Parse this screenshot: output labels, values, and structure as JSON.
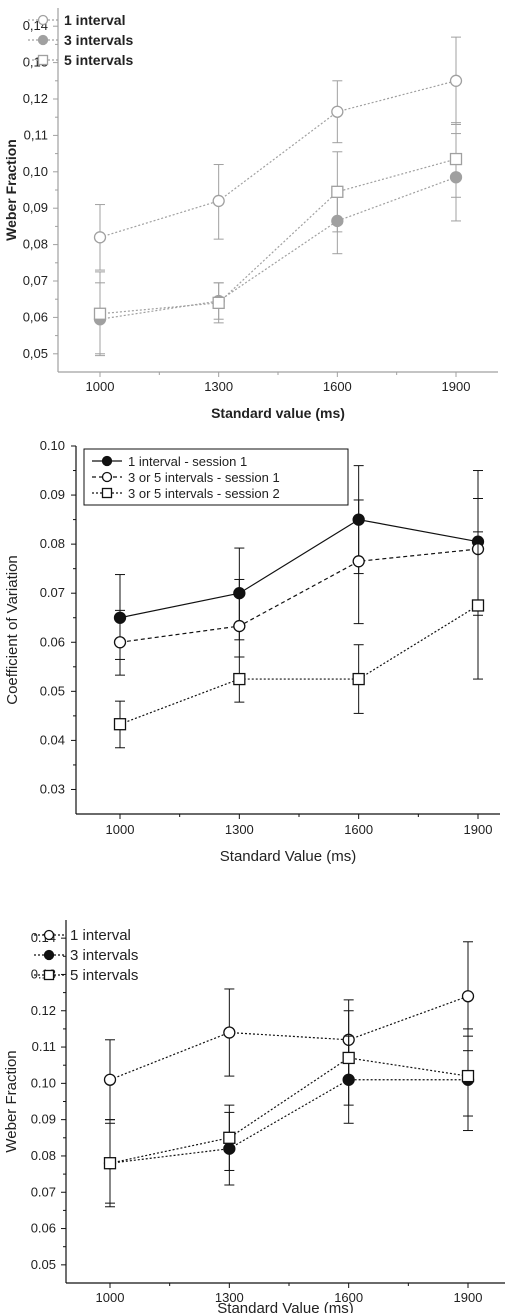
{
  "chart_data": [
    {
      "type": "line",
      "title": "",
      "xlabel": "Standard value (ms)",
      "ylabel": "Weber Fraction",
      "x": [
        1000,
        1300,
        1600,
        1900
      ],
      "xticks": [
        "1000",
        "1300",
        "1600",
        "1900"
      ],
      "ylim": [
        0.045,
        0.145
      ],
      "yticks": [
        "0,05",
        "0,06",
        "0,07",
        "0,08",
        "0,09",
        "0,10",
        "0,11",
        "0,12",
        "0,13",
        "0,14"
      ],
      "grid": false,
      "legend": "top-left",
      "style_color": "#a0a0a0",
      "series": [
        {
          "name": "1 interval",
          "marker": "open-circle",
          "line": "dotted",
          "values": [
            0.082,
            0.092,
            0.1165,
            0.125
          ],
          "err_lo": [
            0.073,
            0.0815,
            0.108,
            0.113
          ],
          "err_hi": [
            0.091,
            0.102,
            0.125,
            0.137
          ]
        },
        {
          "name": "3 intervals",
          "marker": "filled-circle",
          "line": "dotted",
          "values": [
            0.0595,
            0.0645,
            0.0865,
            0.0985
          ],
          "err_lo": [
            0.05,
            0.0595,
            0.0775,
            0.0865
          ],
          "err_hi": [
            0.0695,
            0.0695,
            0.0955,
            0.1105
          ]
        },
        {
          "name": "5 intervals",
          "marker": "open-square",
          "line": "dotted",
          "values": [
            0.061,
            0.064,
            0.0945,
            0.1035
          ],
          "err_lo": [
            0.0495,
            0.0585,
            0.0835,
            0.093
          ],
          "err_hi": [
            0.0725,
            0.0695,
            0.1055,
            0.1135
          ]
        }
      ]
    },
    {
      "type": "line",
      "title": "",
      "xlabel": "Standard Value (ms)",
      "ylabel": "Coefficient of Variation",
      "x": [
        1000,
        1300,
        1600,
        1900
      ],
      "xticks": [
        "1000",
        "1300",
        "1600",
        "1900"
      ],
      "ylim": [
        0.025,
        0.1
      ],
      "yticks": [
        "0.03",
        "0.04",
        "0.05",
        "0.06",
        "0.07",
        "0.08",
        "0.09",
        "0.10"
      ],
      "grid": false,
      "legend": "top-left",
      "style_color": "#111111",
      "series": [
        {
          "name": "1 interval - session 1",
          "marker": "filled-circle",
          "line": "solid",
          "values": [
            0.065,
            0.07,
            0.085,
            0.0805
          ],
          "err_lo": [
            0.0565,
            0.0605,
            0.074,
            0.0665
          ],
          "err_hi": [
            0.0738,
            0.0792,
            0.096,
            0.095
          ]
        },
        {
          "name": "3 or 5 intervals - session 1",
          "marker": "open-circle",
          "line": "dashed",
          "values": [
            0.06,
            0.0633,
            0.0765,
            0.079
          ],
          "err_lo": [
            0.0533,
            0.057,
            0.0638,
            0.0525
          ],
          "err_hi": [
            0.0665,
            0.0728,
            0.089,
            0.0893
          ]
        },
        {
          "name": "3 or 5 intervals - session 2",
          "marker": "open-square",
          "line": "dotted",
          "values": [
            0.0433,
            0.0525,
            0.0525,
            0.0675
          ],
          "err_lo": [
            0.0385,
            0.0478,
            0.0455,
            0.0655
          ],
          "err_hi": [
            0.048,
            0.057,
            0.0595,
            0.0825
          ]
        }
      ]
    },
    {
      "type": "line",
      "title": "",
      "xlabel": "Standard Value (ms)",
      "ylabel": "Weber Fraction",
      "x": [
        1000,
        1300,
        1600,
        1900
      ],
      "xticks": [
        "1000",
        "1300",
        "1600",
        "1900"
      ],
      "ylim": [
        0.045,
        0.145
      ],
      "yticks": [
        "0.05",
        "0.06",
        "0.07",
        "0.08",
        "0.09",
        "0.10",
        "0.11",
        "0.12",
        "0.13",
        "0.14"
      ],
      "grid": false,
      "legend": "top-left",
      "style_color": "#111111",
      "series": [
        {
          "name": "1 interval",
          "marker": "open-circle",
          "line": "dotted",
          "values": [
            0.101,
            0.114,
            0.112,
            0.124
          ],
          "err_lo": [
            0.09,
            0.102,
            0.101,
            0.109
          ],
          "err_hi": [
            0.112,
            0.126,
            0.123,
            0.139
          ]
        },
        {
          "name": "3 intervals",
          "marker": "filled-circle",
          "line": "dotted",
          "values": [
            0.078,
            0.082,
            0.101,
            0.101
          ],
          "err_lo": [
            0.067,
            0.072,
            0.089,
            0.087
          ],
          "err_hi": [
            0.089,
            0.092,
            0.113,
            0.115
          ]
        },
        {
          "name": "5 intervals",
          "marker": "open-square",
          "line": "dotted",
          "values": [
            0.078,
            0.085,
            0.107,
            0.102
          ],
          "err_lo": [
            0.066,
            0.076,
            0.094,
            0.091
          ],
          "err_hi": [
            0.09,
            0.094,
            0.12,
            0.113
          ]
        }
      ]
    }
  ]
}
